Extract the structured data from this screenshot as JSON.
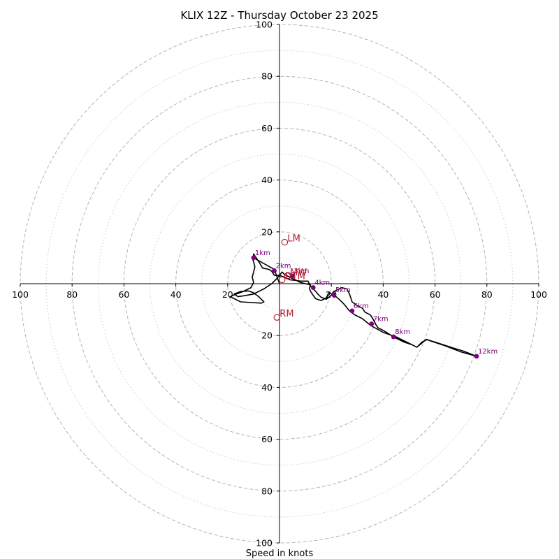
{
  "chart_data": {
    "type": "hodograph",
    "title": "KLIX 12Z - Thursday October 23 2025",
    "xlabel": "Speed in knots",
    "units": "knots",
    "xlim": [
      -100,
      100
    ],
    "ylim": [
      -100,
      100
    ],
    "rings": {
      "major": [
        20,
        40,
        60,
        80,
        100
      ],
      "minor": [
        10,
        30,
        50,
        70,
        90
      ]
    },
    "x_tick_values": [
      -100,
      -80,
      -60,
      -40,
      -20,
      20,
      40,
      60,
      80,
      100
    ],
    "x_tick_labels": [
      "100",
      "80",
      "60",
      "40",
      "20",
      "20",
      "40",
      "60",
      "80",
      "100"
    ],
    "y_tick_values": [
      100,
      80,
      60,
      40,
      20,
      -20,
      -40,
      -60,
      -80,
      -100
    ],
    "y_tick_labels": [
      "100",
      "80",
      "60",
      "40",
      "20",
      "20",
      "40",
      "60",
      "80",
      "100"
    ],
    "colors": {
      "trace": "#000000",
      "height_markers": "#800080",
      "storm_motion": "#b2182b",
      "major_ring": "#b4b4b4",
      "minor_ring": "#cccccc",
      "axes": "#000000"
    },
    "trace": [
      [
        0,
        0
      ],
      [
        -2,
        5.5
      ],
      [
        -10,
        10
      ],
      [
        -10,
        11.5
      ],
      [
        -8,
        8.5
      ],
      [
        -6.5,
        6
      ],
      [
        -4,
        5.5
      ],
      [
        -3,
        4.8
      ],
      [
        -2,
        3.2
      ],
      [
        0,
        3.2
      ],
      [
        2,
        2.5
      ],
      [
        4,
        1.5
      ],
      [
        6,
        1.3
      ],
      [
        8,
        1
      ],
      [
        11,
        1
      ],
      [
        12,
        -1
      ],
      [
        13,
        -2
      ],
      [
        14,
        -3
      ],
      [
        15,
        -4.2
      ],
      [
        16,
        -5.2
      ],
      [
        18,
        -6
      ],
      [
        20,
        -4.5
      ],
      [
        21,
        -3
      ],
      [
        22,
        -2.5
      ],
      [
        23,
        -2
      ],
      [
        24,
        -1.5
      ],
      [
        26,
        -2
      ],
      [
        27,
        -4
      ],
      [
        28,
        -7
      ],
      [
        30,
        -8.5
      ],
      [
        32,
        -9.5
      ],
      [
        33,
        -11
      ],
      [
        35,
        -12
      ],
      [
        36,
        -13.5
      ],
      [
        37,
        -15.5
      ],
      [
        38,
        -17
      ],
      [
        40,
        -18
      ],
      [
        44,
        -20.5
      ],
      [
        48,
        -22.5
      ],
      [
        51,
        -23.5
      ],
      [
        53,
        -24.5
      ],
      [
        56,
        -22
      ],
      [
        56.5,
        -21.5
      ],
      [
        60,
        -22.5
      ],
      [
        66,
        -24.5
      ],
      [
        71,
        -26
      ],
      [
        76,
        -28
      ],
      [
        70,
        -26.3
      ],
      [
        64,
        -24
      ],
      [
        58,
        -22
      ],
      [
        57,
        -21.5
      ],
      [
        55,
        -22.5
      ],
      [
        53,
        -24.5
      ],
      [
        52,
        -24
      ],
      [
        45,
        -20.5
      ],
      [
        40,
        -18.8
      ],
      [
        35,
        -16
      ],
      [
        32,
        -13.5
      ],
      [
        29,
        -12
      ],
      [
        27,
        -10.5
      ],
      [
        25,
        -8
      ],
      [
        23,
        -6
      ],
      [
        21,
        -4.3
      ],
      [
        19,
        -3.5
      ],
      [
        18,
        -5.5
      ],
      [
        16,
        -6.5
      ],
      [
        14,
        -5.8
      ],
      [
        13,
        -4.5
      ],
      [
        12,
        -3
      ],
      [
        11.5,
        -1.8
      ],
      [
        12,
        -0.5
      ],
      [
        10,
        0
      ],
      [
        8,
        0.5
      ],
      [
        6,
        1.5
      ],
      [
        4,
        2.5
      ],
      [
        2,
        3.5
      ],
      [
        1,
        4.5
      ],
      [
        -1,
        2
      ],
      [
        -3,
        0
      ],
      [
        -6,
        -2
      ],
      [
        -10,
        -4
      ],
      [
        -14,
        -4.7
      ],
      [
        -16,
        -5
      ],
      [
        -17.5,
        -4
      ],
      [
        -15,
        -3
      ],
      [
        -12,
        -2.8
      ],
      [
        -10,
        -3.5
      ],
      [
        -8,
        -5
      ],
      [
        -6,
        -7
      ],
      [
        -7,
        -7.5
      ],
      [
        -15,
        -7
      ],
      [
        -19,
        -5
      ],
      [
        -18,
        -4.5
      ],
      [
        -14,
        -3
      ],
      [
        -11,
        -1.5
      ],
      [
        -10,
        0.5
      ],
      [
        -10.5,
        2.5
      ],
      [
        -10,
        4.5
      ],
      [
        -9.5,
        6.5
      ],
      [
        -10,
        8.5
      ],
      [
        -10.5,
        10
      ]
    ],
    "height_markers": [
      {
        "label": "1km",
        "x": -10,
        "y": 10
      },
      {
        "label": "2km",
        "x": -2,
        "y": 5
      },
      {
        "label": "3km",
        "x": 5,
        "y": 3
      },
      {
        "label": "4km",
        "x": 13,
        "y": -1.5
      },
      {
        "label": "5km",
        "x": 21,
        "y": -4.3
      },
      {
        "label": "6km",
        "x": 28,
        "y": -10.5
      },
      {
        "label": "7km",
        "x": 35.5,
        "y": -15.5
      },
      {
        "label": "8km",
        "x": 44,
        "y": -20.5
      },
      {
        "label": "12km",
        "x": 76,
        "y": -28
      }
    ],
    "storm_motion": [
      {
        "label": "LM",
        "x": 2,
        "y": 16
      },
      {
        "label": "RM",
        "x": -1,
        "y": -13
      },
      {
        "label": "MW",
        "x": 3,
        "y": 3
      },
      {
        "label": "DTM",
        "x": 1,
        "y": 1.5
      }
    ]
  }
}
